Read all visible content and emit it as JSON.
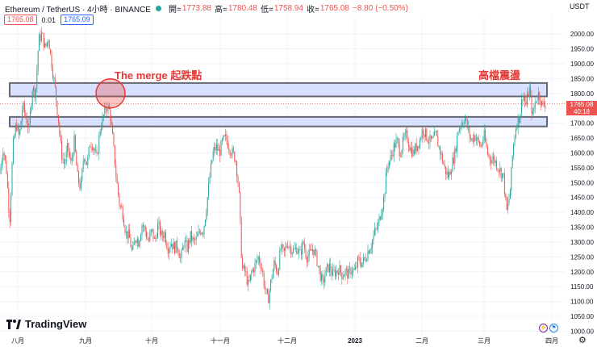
{
  "header": {
    "symbol": "Ethereum / TetherUS · 4小時 · BINANCE",
    "open_label": "開=",
    "open_value": "1773.88",
    "high_label": "高=",
    "high_value": "1780.48",
    "low_label": "低=",
    "low_value": "1758.94",
    "close_label": "收=",
    "close_value": "1765.08",
    "change": "−8.80 (−0.50%)",
    "bid": "1765.08",
    "spread": "0.01",
    "ask": "1765.09",
    "currency": "USDT"
  },
  "price_tag": {
    "price": "1765.08",
    "countdown": "40:18"
  },
  "branding": {
    "logo_text": "TradingView"
  },
  "colors": {
    "up": "#26a69a",
    "down": "#ef5350",
    "zone_fill": "#d6e0ff",
    "zone_border": "#5d606b",
    "annotation": "#e53935"
  },
  "chart_data": {
    "type": "candlestick",
    "ylim": [
      985,
      2060
    ],
    "y_ticks": [
      1000,
      1050,
      1100,
      1150,
      1200,
      1250,
      1300,
      1350,
      1400,
      1450,
      1500,
      1550,
      1600,
      1650,
      1700,
      1750,
      1800,
      1850,
      1900,
      1950,
      2000
    ],
    "x_ticks": [
      "八月",
      "九月",
      "十月",
      "十一月",
      "十二月",
      "2023",
      "二月",
      "三月",
      "四月"
    ],
    "path_anchors": [
      [
        0,
        1530
      ],
      [
        4,
        1620
      ],
      [
        8,
        1540
      ],
      [
        12,
        1370
      ],
      [
        16,
        1620
      ],
      [
        20,
        1700
      ],
      [
        24,
        1650
      ],
      [
        28,
        1760
      ],
      [
        32,
        1720
      ],
      [
        36,
        1680
      ],
      [
        40,
        1820
      ],
      [
        44,
        1800
      ],
      [
        48,
        1980
      ],
      [
        52,
        2000
      ],
      [
        56,
        1950
      ],
      [
        60,
        1990
      ],
      [
        64,
        1900
      ],
      [
        68,
        1820
      ],
      [
        72,
        1720
      ],
      [
        76,
        1600
      ],
      [
        80,
        1560
      ],
      [
        84,
        1620
      ],
      [
        88,
        1560
      ],
      [
        92,
        1640
      ],
      [
        96,
        1520
      ],
      [
        100,
        1480
      ],
      [
        104,
        1600
      ],
      [
        108,
        1560
      ],
      [
        112,
        1640
      ],
      [
        116,
        1620
      ],
      [
        120,
        1580
      ],
      [
        124,
        1680
      ],
      [
        128,
        1720
      ],
      [
        132,
        1760
      ],
      [
        136,
        1740
      ],
      [
        140,
        1640
      ],
      [
        144,
        1520
      ],
      [
        148,
        1430
      ],
      [
        152,
        1400
      ],
      [
        156,
        1330
      ],
      [
        160,
        1320
      ],
      [
        164,
        1260
      ],
      [
        168,
        1320
      ],
      [
        172,
        1300
      ],
      [
        176,
        1360
      ],
      [
        180,
        1340
      ],
      [
        184,
        1300
      ],
      [
        188,
        1340
      ],
      [
        192,
        1300
      ],
      [
        196,
        1360
      ],
      [
        200,
        1320
      ],
      [
        204,
        1330
      ],
      [
        208,
        1280
      ],
      [
        212,
        1300
      ],
      [
        216,
        1280
      ],
      [
        220,
        1290
      ],
      [
        224,
        1240
      ],
      [
        228,
        1300
      ],
      [
        232,
        1280
      ],
      [
        236,
        1320
      ],
      [
        240,
        1300
      ],
      [
        244,
        1310
      ],
      [
        248,
        1340
      ],
      [
        252,
        1340
      ],
      [
        256,
        1420
      ],
      [
        260,
        1520
      ],
      [
        264,
        1600
      ],
      [
        268,
        1620
      ],
      [
        272,
        1600
      ],
      [
        276,
        1640
      ],
      [
        280,
        1650
      ],
      [
        284,
        1620
      ],
      [
        288,
        1600
      ],
      [
        292,
        1580
      ],
      [
        296,
        1480
      ],
      [
        300,
        1210
      ],
      [
        304,
        1200
      ],
      [
        308,
        1150
      ],
      [
        312,
        1200
      ],
      [
        316,
        1220
      ],
      [
        320,
        1250
      ],
      [
        324,
        1220
      ],
      [
        328,
        1150
      ],
      [
        332,
        1100
      ],
      [
        336,
        1170
      ],
      [
        340,
        1230
      ],
      [
        344,
        1200
      ],
      [
        348,
        1280
      ],
      [
        352,
        1260
      ],
      [
        356,
        1300
      ],
      [
        360,
        1280
      ],
      [
        364,
        1270
      ],
      [
        368,
        1280
      ],
      [
        372,
        1260
      ],
      [
        376,
        1300
      ],
      [
        380,
        1250
      ],
      [
        384,
        1260
      ],
      [
        388,
        1280
      ],
      [
        392,
        1250
      ],
      [
        396,
        1200
      ],
      [
        400,
        1160
      ],
      [
        404,
        1200
      ],
      [
        408,
        1220
      ],
      [
        412,
        1190
      ],
      [
        416,
        1200
      ],
      [
        420,
        1210
      ],
      [
        424,
        1190
      ],
      [
        428,
        1200
      ],
      [
        432,
        1190
      ],
      [
        436,
        1210
      ],
      [
        440,
        1200
      ],
      [
        444,
        1240
      ],
      [
        448,
        1230
      ],
      [
        452,
        1240
      ],
      [
        456,
        1270
      ],
      [
        460,
        1290
      ],
      [
        464,
        1330
      ],
      [
        468,
        1350
      ],
      [
        472,
        1400
      ],
      [
        476,
        1450
      ],
      [
        480,
        1560
      ],
      [
        484,
        1580
      ],
      [
        488,
        1620
      ],
      [
        492,
        1640
      ],
      [
        496,
        1600
      ],
      [
        500,
        1640
      ],
      [
        504,
        1660
      ],
      [
        508,
        1620
      ],
      [
        512,
        1600
      ],
      [
        516,
        1620
      ],
      [
        520,
        1640
      ],
      [
        524,
        1680
      ],
      [
        528,
        1660
      ],
      [
        532,
        1640
      ],
      [
        536,
        1640
      ],
      [
        540,
        1660
      ],
      [
        544,
        1620
      ],
      [
        548,
        1580
      ],
      [
        552,
        1540
      ],
      [
        556,
        1520
      ],
      [
        560,
        1560
      ],
      [
        564,
        1600
      ],
      [
        568,
        1680
      ],
      [
        572,
        1700
      ],
      [
        576,
        1720
      ],
      [
        580,
        1680
      ],
      [
        584,
        1640
      ],
      [
        588,
        1660
      ],
      [
        592,
        1640
      ],
      [
        596,
        1620
      ],
      [
        600,
        1660
      ],
      [
        604,
        1600
      ],
      [
        608,
        1580
      ],
      [
        612,
        1580
      ],
      [
        616,
        1560
      ],
      [
        620,
        1540
      ],
      [
        624,
        1520
      ],
      [
        628,
        1400
      ],
      [
        632,
        1460
      ],
      [
        636,
        1620
      ],
      [
        640,
        1700
      ],
      [
        644,
        1720
      ],
      [
        648,
        1800
      ],
      [
        652,
        1760
      ],
      [
        656,
        1820
      ],
      [
        660,
        1720
      ],
      [
        664,
        1780
      ],
      [
        668,
        1800
      ],
      [
        672,
        1760
      ],
      [
        676,
        1765
      ]
    ],
    "zones": [
      {
        "from": 1790,
        "to": 1835
      },
      {
        "from": 1689,
        "to": 1721
      }
    ],
    "annotations": [
      {
        "text": "The merge 起跌點",
        "anchor_x": 137,
        "anchor_y": 1800
      },
      {
        "text": "高檔震盪",
        "anchor_x": 616,
        "anchor_y": 1870
      }
    ],
    "last_price": 1765.08
  }
}
